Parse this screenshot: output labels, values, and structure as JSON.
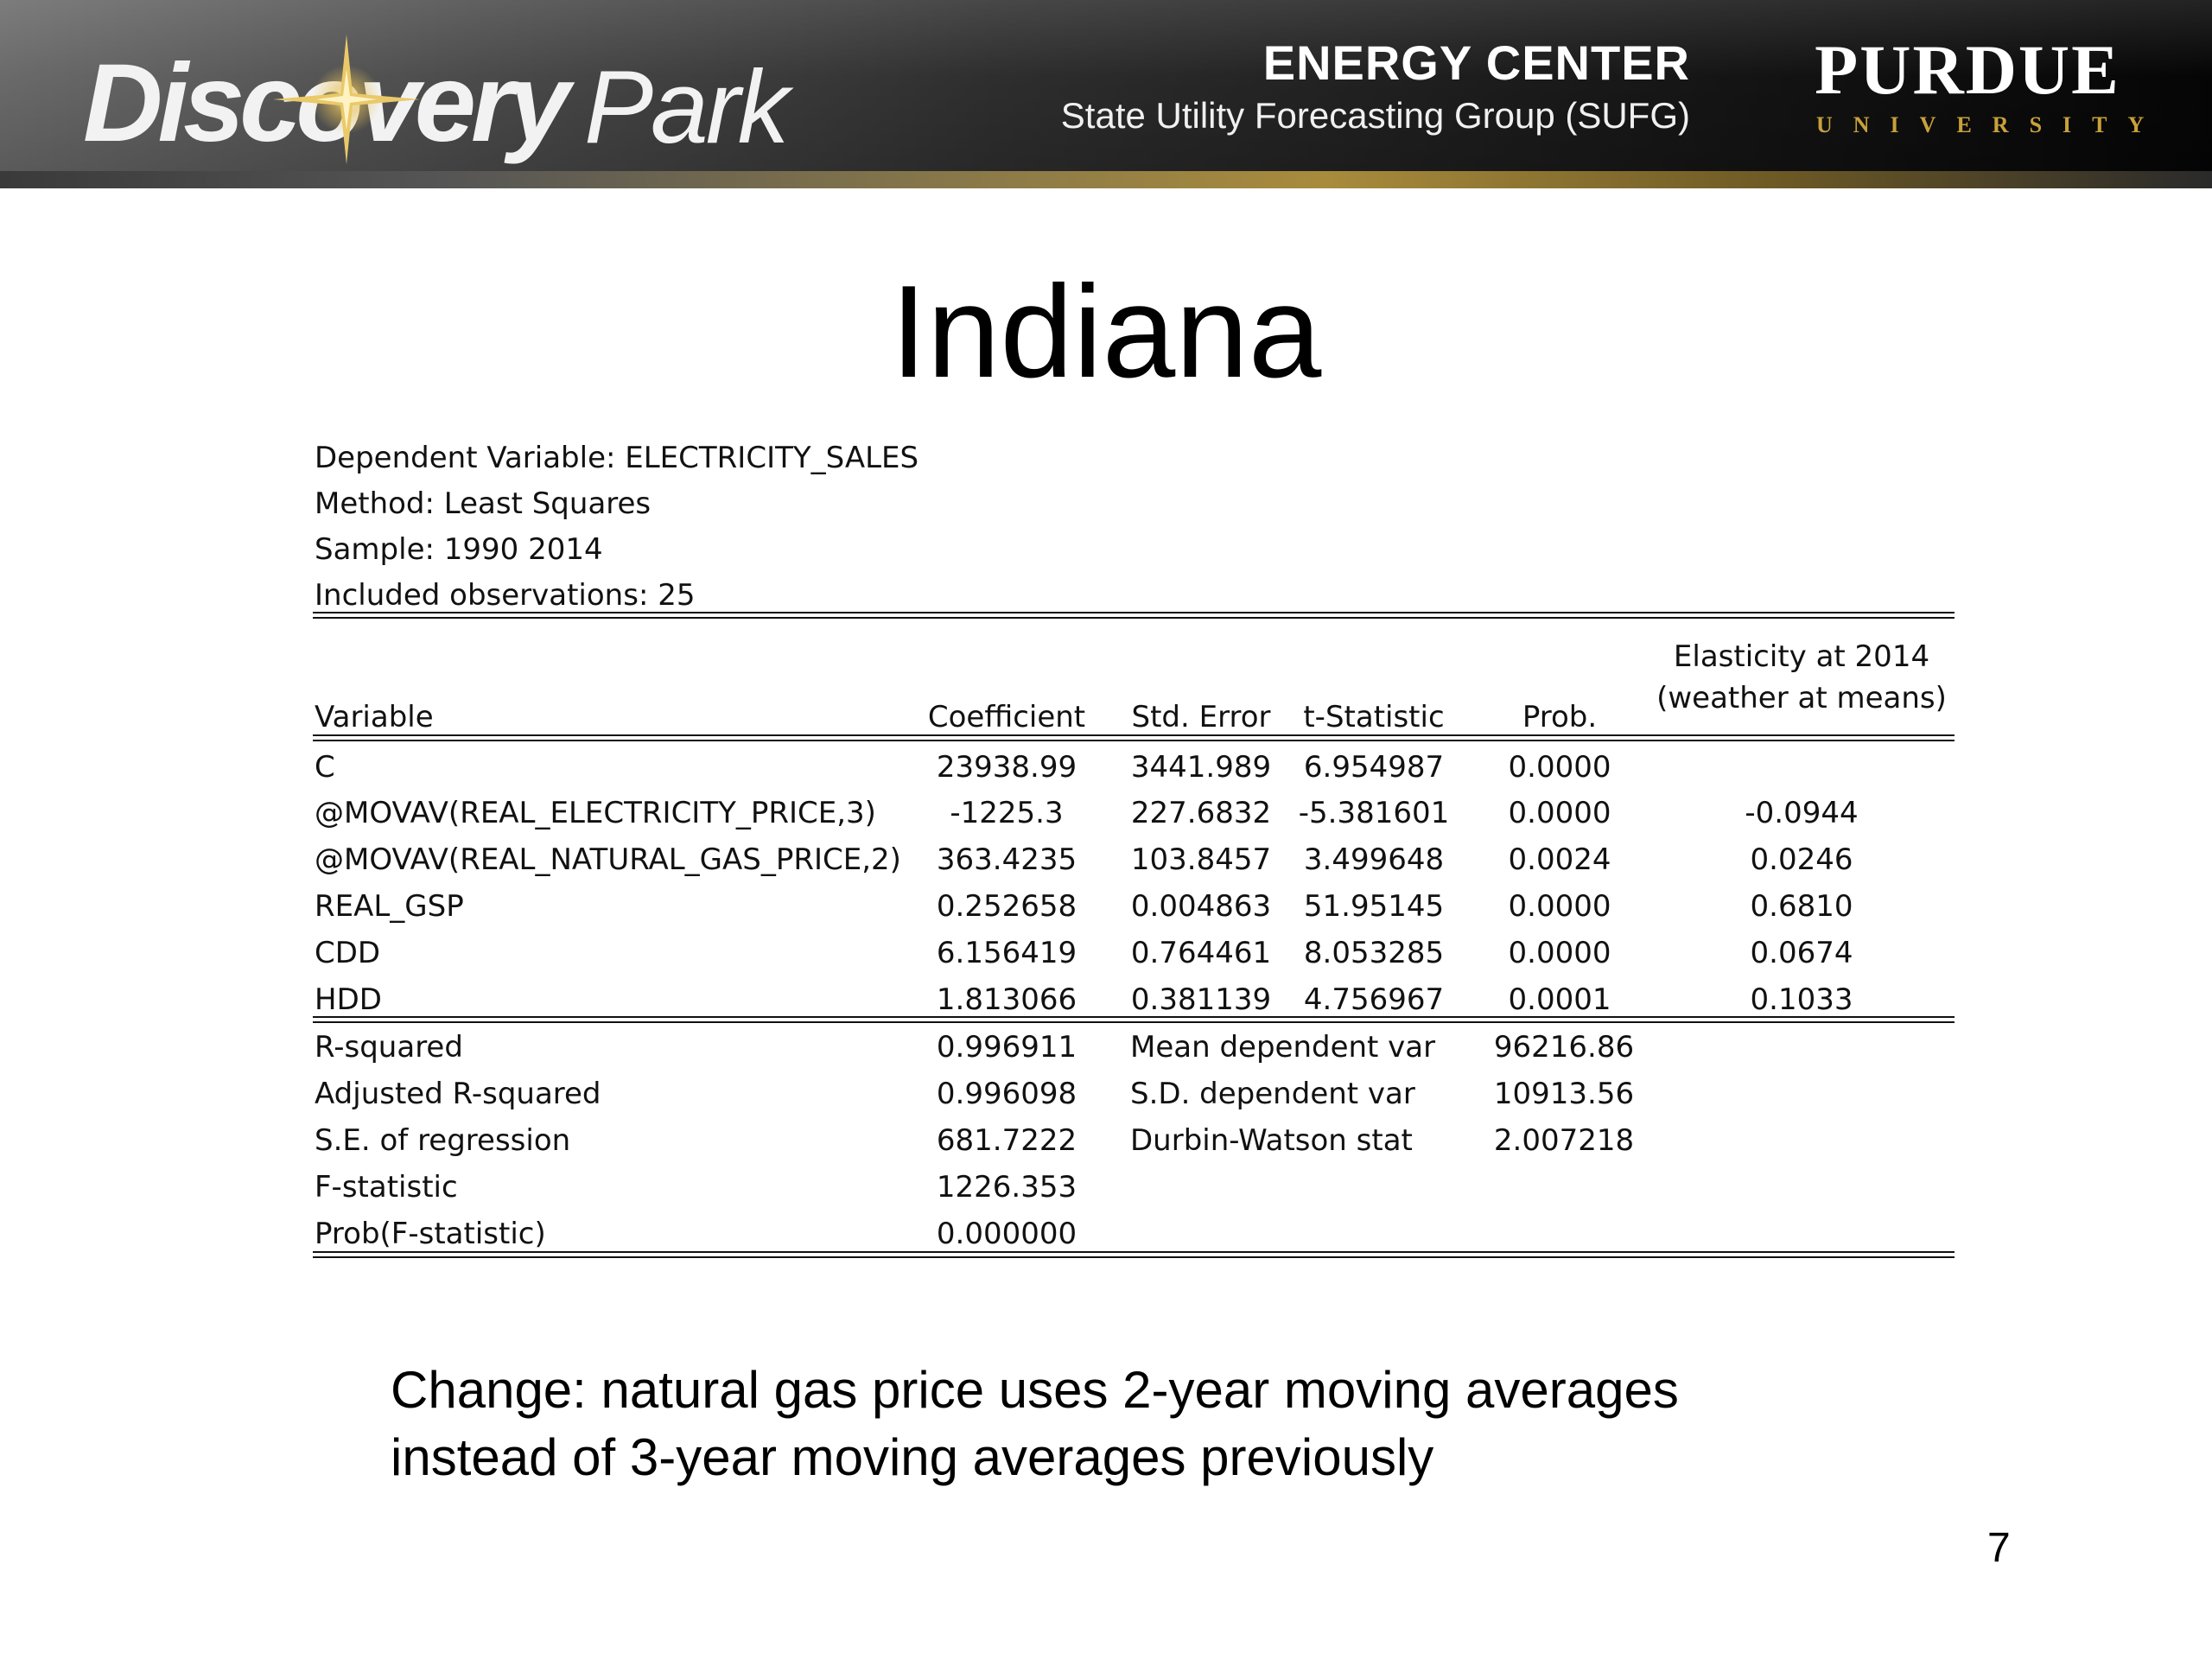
{
  "header": {
    "logo_left": {
      "word1": "Discovery",
      "word2": "Park"
    },
    "center_title": "ENERGY CENTER",
    "center_subtitle": "State Utility Forecasting Group (SUFG)",
    "logo_right": {
      "name": "PURDUE",
      "sub": "UNIVERSITY"
    }
  },
  "title": "Indiana",
  "meta": {
    "dependent": "Dependent Variable: ELECTRICITY_SALES",
    "method": "Method: Least Squares",
    "sample": "Sample: 1990 2014",
    "observations": "Included observations: 25"
  },
  "table": {
    "headers": {
      "variable": "Variable",
      "coefficient": "Coefficient",
      "std_error": "Std. Error",
      "t_stat": "t-Statistic",
      "prob": "Prob.",
      "elasticity_line1": "Elasticity at 2014",
      "elasticity_line2": "(weather at means)"
    },
    "rows": [
      {
        "variable": "C",
        "coefficient": "23938.99",
        "std_error": "3441.989",
        "t_stat": "6.954987",
        "prob": "0.0000",
        "elasticity": ""
      },
      {
        "variable": "@MOVAV(REAL_ELECTRICITY_PRICE,3)",
        "coefficient": "-1225.3",
        "std_error": "227.6832",
        "t_stat": "-5.381601",
        "prob": "0.0000",
        "elasticity": "-0.0944"
      },
      {
        "variable": "@MOVAV(REAL_NATURAL_GAS_PRICE,2)",
        "coefficient": "363.4235",
        "std_error": "103.8457",
        "t_stat": "3.499648",
        "prob": "0.0024",
        "elasticity": "0.0246"
      },
      {
        "variable": "REAL_GSP",
        "coefficient": "0.252658",
        "std_error": "0.004863",
        "t_stat": "51.95145",
        "prob": "0.0000",
        "elasticity": "0.6810"
      },
      {
        "variable": "CDD",
        "coefficient": "6.156419",
        "std_error": "0.764461",
        "t_stat": "8.053285",
        "prob": "0.0000",
        "elasticity": "0.0674"
      },
      {
        "variable": "HDD",
        "coefficient": "1.813066",
        "std_error": "0.381139",
        "t_stat": "4.756967",
        "prob": "0.0001",
        "elasticity": "0.1033"
      }
    ]
  },
  "stats": {
    "left": [
      {
        "label": "R-squared",
        "value": "0.996911"
      },
      {
        "label": "Adjusted R-squared",
        "value": "0.996098"
      },
      {
        "label": "S.E. of regression",
        "value": "681.7222"
      },
      {
        "label": "F-statistic",
        "value": "1226.353"
      },
      {
        "label": "Prob(F-statistic)",
        "value": "0.000000"
      }
    ],
    "right": [
      {
        "label": "Mean dependent var",
        "value": "96216.86"
      },
      {
        "label": "S.D. dependent var",
        "value": "10913.56"
      },
      {
        "label": "Durbin-Watson stat",
        "value": "2.007218"
      }
    ]
  },
  "note": {
    "line1": "Change: natural  gas price uses  2-year moving averages",
    "line2": "instead of 3-year moving averages previously"
  },
  "page_number": "7"
}
